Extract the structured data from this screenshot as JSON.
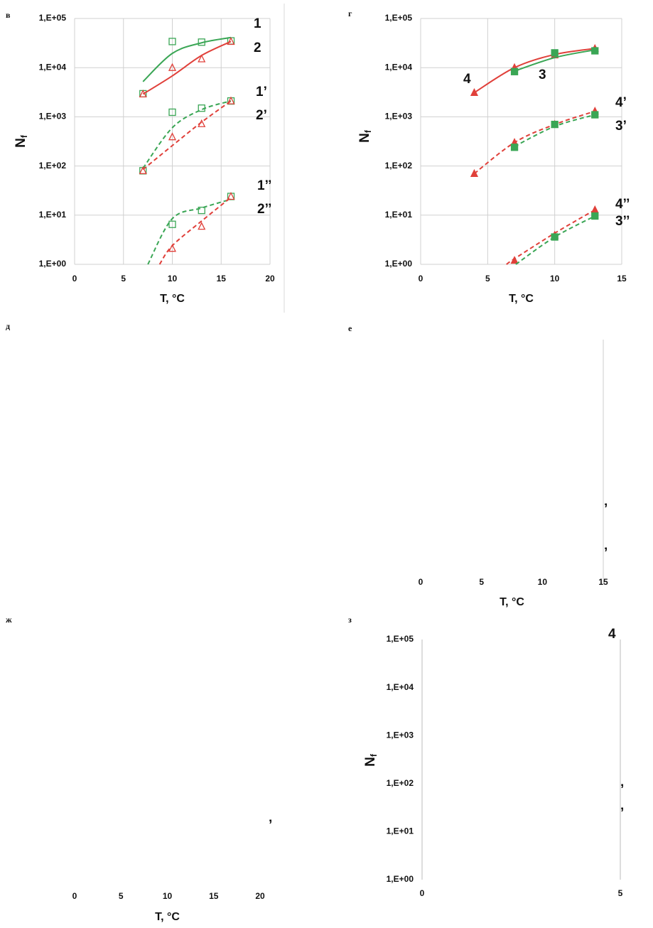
{
  "chart_data": [
    {
      "type": "scatter",
      "panel": "в",
      "log_y": true,
      "grid": true,
      "filled": false,
      "xlim": [
        0,
        20
      ],
      "xticks": [
        0,
        5,
        10,
        15,
        20
      ],
      "ylim": [
        1,
        100000
      ],
      "yticks": [
        {
          "value": 1,
          "label": "1,E+00"
        },
        {
          "value": 10,
          "label": "1,E+01"
        },
        {
          "value": 100,
          "label": "1,E+02"
        },
        {
          "value": 1000,
          "label": "1,E+03"
        },
        {
          "value": 10000,
          "label": "1,E+04"
        },
        {
          "value": 100000,
          "label": "1,E+05"
        }
      ],
      "x_label": "T, °C",
      "y_label": {
        "main": "N",
        "sub": "f"
      },
      "series": [
        {
          "name": "1",
          "color": "#3aa655",
          "marker": "square",
          "dash": false,
          "x": [
            7,
            10,
            13,
            16
          ],
          "values": [
            2950,
            34000,
            33000,
            35000
          ],
          "fit_x": [
            7,
            10,
            13,
            16
          ],
          "fit_values": [
            5200,
            19500,
            32000,
            41000
          ]
        },
        {
          "name": "2",
          "color": "#e0403a",
          "marker": "triangle",
          "dash": false,
          "x": [
            7,
            10,
            13,
            16
          ],
          "values": [
            2900,
            10000,
            15000,
            34000
          ],
          "fit_x": [
            7,
            10,
            13,
            16
          ],
          "fit_values": [
            2900,
            6800,
            17700,
            34000
          ]
        },
        {
          "name": "1’",
          "color": "#3aa655",
          "marker": "square",
          "dash": true,
          "x": [
            7,
            10,
            13,
            16
          ],
          "values": [
            80,
            1240,
            1500,
            2100
          ],
          "fit_x": [
            7,
            10,
            13,
            16
          ],
          "fit_values": [
            90,
            600,
            1400,
            2100
          ]
        },
        {
          "name": "2’",
          "color": "#e0403a",
          "marker": "triangle",
          "dash": true,
          "x": [
            7,
            10,
            13,
            16
          ],
          "values": [
            80,
            390,
            720,
            2100
          ],
          "fit_x": [
            7,
            10,
            13,
            16
          ],
          "fit_values": [
            85,
            260,
            780,
            2100
          ]
        },
        {
          "name": "1’’",
          "color": "#3aa655",
          "marker": "square",
          "dash": true,
          "x": [
            10,
            13,
            16
          ],
          "values": [
            6.5,
            12.5,
            24
          ],
          "fit_x": [
            7.5,
            10,
            13,
            16
          ],
          "fit_values": [
            1,
            8.5,
            14,
            21
          ]
        },
        {
          "name": "2’’",
          "color": "#e0403a",
          "marker": "triangle",
          "dash": true,
          "x": [
            10,
            13,
            16
          ],
          "values": [
            2.1,
            5.9,
            24
          ],
          "fit_x": [
            8.7,
            10,
            13,
            16
          ],
          "fit_values": [
            1,
            2.4,
            7.6,
            23
          ]
        }
      ]
    },
    {
      "type": "scatter",
      "panel": "г",
      "log_y": true,
      "grid": true,
      "filled": true,
      "xlim": [
        0,
        15
      ],
      "xticks": [
        0,
        5,
        10,
        15
      ],
      "ylim": [
        1,
        100000
      ],
      "yticks": [
        {
          "value": 1,
          "label": "1,E+00"
        },
        {
          "value": 10,
          "label": "1,E+01"
        },
        {
          "value": 100,
          "label": "1,E+02"
        },
        {
          "value": 1000,
          "label": "1,E+03"
        },
        {
          "value": 10000,
          "label": "1,E+04"
        },
        {
          "value": 100000,
          "label": "1,E+05"
        }
      ],
      "x_label": "T, °C",
      "y_label": {
        "main": "N",
        "sub": "f"
      },
      "series": [
        {
          "name": "4",
          "color": "#e0403a",
          "marker": "triangle",
          "dash": false,
          "x": [
            4,
            7,
            10,
            13
          ],
          "values": [
            3100,
            10000,
            18000,
            24500
          ],
          "fit_x": [
            4,
            7,
            10,
            13
          ],
          "fit_values": [
            3100,
            10000,
            18500,
            24500
          ]
        },
        {
          "name": "3",
          "color": "#3aa655",
          "marker": "square",
          "dash": false,
          "x": [
            7,
            10,
            13
          ],
          "values": [
            8300,
            20000,
            22000
          ],
          "fit_x": [
            7,
            10,
            13
          ],
          "fit_values": [
            8500,
            16000,
            23000
          ]
        },
        {
          "name": "4’",
          "color": "#e0403a",
          "marker": "triangle",
          "dash": true,
          "x": [
            4,
            7,
            10,
            13
          ],
          "values": [
            70,
            300,
            700,
            1300
          ],
          "fit_x": [
            4,
            7,
            10,
            13
          ],
          "fit_values": [
            70,
            300,
            700,
            1300
          ]
        },
        {
          "name": "3’",
          "color": "#3aa655",
          "marker": "square",
          "dash": true,
          "x": [
            7,
            10,
            13
          ],
          "values": [
            240,
            700,
            1100
          ],
          "fit_x": [
            7,
            10,
            13
          ],
          "fit_values": [
            250,
            640,
            1100
          ]
        },
        {
          "name": "4’’",
          "color": "#e0403a",
          "marker": "triangle",
          "dash": true,
          "x": [
            7,
            10,
            13
          ],
          "values": [
            1.2,
            3.9,
            12.8
          ],
          "fit_x": [
            6.4,
            7,
            10,
            13
          ],
          "fit_values": [
            1,
            1.3,
            4.3,
            12.8
          ]
        },
        {
          "name": "3’’",
          "color": "#3aa655",
          "marker": "square",
          "dash": true,
          "x": [
            10,
            13
          ],
          "values": [
            3.6,
            9.6
          ],
          "fit_x": [
            7.1,
            10,
            13
          ],
          "fit_values": [
            1,
            3.6,
            9.6
          ]
        }
      ]
    },
    {
      "type": "blank",
      "panel": "д"
    },
    {
      "type": "blank",
      "panel": "е",
      "xlim": [
        0,
        15
      ],
      "xticks": [
        0,
        5,
        10,
        15
      ],
      "x_label": "T, °C",
      "annotations": [
        "’",
        "’"
      ]
    },
    {
      "type": "blank",
      "panel": "ж",
      "xlim": [
        0,
        20
      ],
      "xticks": [
        0,
        5,
        10,
        15,
        20
      ],
      "x_label": "T, °C",
      "annotations": [
        "’"
      ]
    },
    {
      "type": "blank",
      "panel": "з",
      "log_y": true,
      "xlim": [
        0,
        5
      ],
      "xticks": [
        0,
        5
      ],
      "ylim": [
        1,
        100000
      ],
      "yticks": [
        {
          "value": 1,
          "label": "1,E+00"
        },
        {
          "value": 10,
          "label": "1,E+01"
        },
        {
          "value": 100,
          "label": "1,E+02"
        },
        {
          "value": 1000,
          "label": "1,E+03"
        },
        {
          "value": 10000,
          "label": "1,E+04"
        },
        {
          "value": 100000,
          "label": "1,E+05"
        }
      ],
      "y_label": {
        "main": "N",
        "sub": "f"
      },
      "annotations": [
        "4",
        "’",
        "’"
      ]
    }
  ]
}
